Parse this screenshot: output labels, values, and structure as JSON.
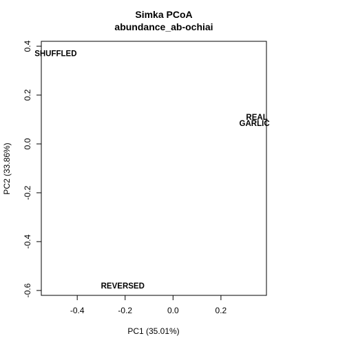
{
  "chart_data": {
    "type": "scatter",
    "title": "Simka PCoA",
    "subtitle": "abundance_ab-ochiai",
    "xlabel": "PC1 (35.01%)",
    "ylabel": "PC2 (33.86%)",
    "xlim": [
      -0.55,
      0.39
    ],
    "ylim": [
      -0.62,
      0.42
    ],
    "xticks": [
      -0.4,
      -0.2,
      0.0,
      0.2
    ],
    "yticks": [
      -0.6,
      -0.4,
      -0.2,
      0.0,
      0.2,
      0.4
    ],
    "xtick_labels": [
      "-0.4",
      "-0.2",
      "0.0",
      "0.2"
    ],
    "ytick_labels": [
      "-0.6",
      "-0.4",
      "-0.2",
      "0.0",
      "0.2",
      "0.4"
    ],
    "grid": false,
    "legend": false,
    "points": [
      {
        "label": "SHUFFLED",
        "x": -0.49,
        "y": 0.37
      },
      {
        "label": "REAL",
        "x": 0.35,
        "y": 0.11
      },
      {
        "label": "GARLIC",
        "x": 0.34,
        "y": 0.085
      },
      {
        "label": "REVERSED",
        "x": -0.21,
        "y": -0.58
      }
    ]
  }
}
